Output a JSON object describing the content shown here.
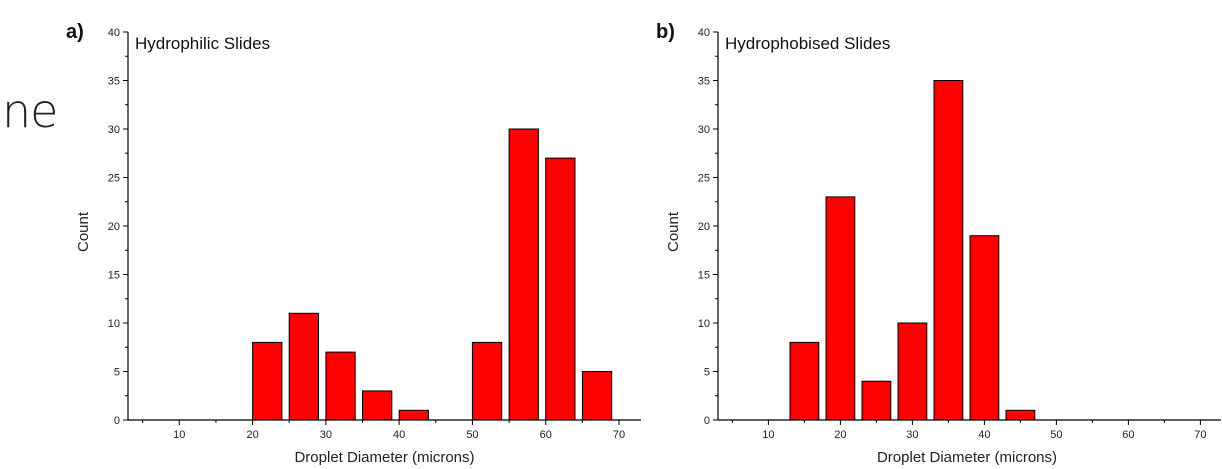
{
  "page_fragment": "ne",
  "chart_data": [
    {
      "type": "bar",
      "panel_label": "a)",
      "title": "Hydrophilic Slides",
      "xlabel": "Droplet Diameter (microns)",
      "ylabel": "Count",
      "xlim": [
        3,
        73
      ],
      "ylim": [
        0,
        40
      ],
      "xticks": [
        10,
        20,
        30,
        40,
        50,
        60,
        70
      ],
      "yticks": [
        0,
        5,
        10,
        15,
        20,
        25,
        30,
        35,
        40
      ],
      "bar_width": 4,
      "x": [
        22,
        27,
        32,
        37,
        42,
        52,
        57,
        62,
        67
      ],
      "values": [
        8,
        11,
        7,
        3,
        1,
        8,
        30,
        27,
        5
      ],
      "bar_color": "#ff0000",
      "grid": false
    },
    {
      "type": "bar",
      "panel_label": "b)",
      "title": "Hydrophobised Slides",
      "xlabel": "Droplet Diameter (microns)",
      "ylabel": "Count",
      "xlim": [
        3,
        73
      ],
      "ylim": [
        0,
        40
      ],
      "xticks": [
        10,
        20,
        30,
        40,
        50,
        60,
        70
      ],
      "yticks": [
        0,
        5,
        10,
        15,
        20,
        25,
        30,
        35,
        40
      ],
      "bar_width": 4,
      "x": [
        15,
        20,
        25,
        30,
        35,
        40,
        45
      ],
      "values": [
        8,
        23,
        4,
        10,
        35,
        19,
        1
      ],
      "bar_color": "#ff0000",
      "grid": false
    }
  ]
}
